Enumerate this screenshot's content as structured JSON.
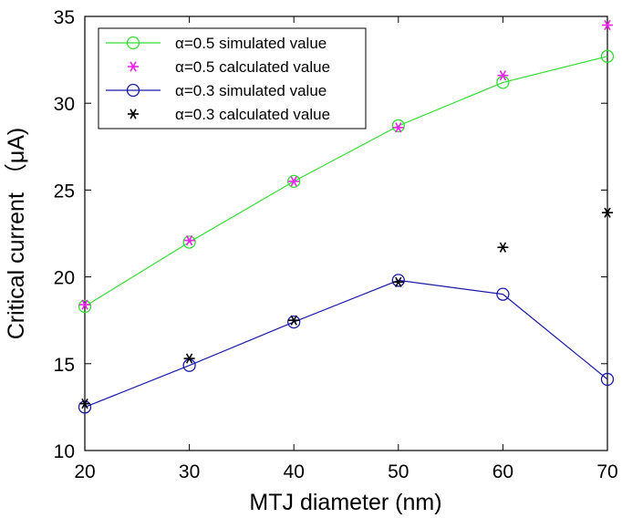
{
  "chart_data": {
    "type": "line",
    "title": "",
    "xlabel": "MTJ diameter (nm)",
    "ylabel": "Critical current （μA)",
    "xlim": [
      20,
      70
    ],
    "ylim": [
      10,
      35
    ],
    "xticks": [
      20,
      30,
      40,
      50,
      60,
      70
    ],
    "yticks": [
      10,
      15,
      20,
      25,
      30,
      35
    ],
    "grid": false,
    "legend_position": "top-left",
    "x": [
      20,
      30,
      40,
      50,
      60,
      70
    ],
    "series": [
      {
        "name": "α=0.5 simulated value",
        "marker": "circle",
        "line": true,
        "color": "#33dd33",
        "values": [
          18.3,
          22.0,
          25.5,
          28.7,
          31.2,
          32.7
        ]
      },
      {
        "name": "α=0.5 calculated value",
        "marker": "star",
        "line": false,
        "color": "#ee22ee",
        "values": [
          18.4,
          22.1,
          25.5,
          28.6,
          31.6,
          34.5
        ]
      },
      {
        "name": "α=0.3 simulated value",
        "marker": "circle",
        "line": true,
        "color": "#1a1aa8",
        "values": [
          12.5,
          14.9,
          17.4,
          19.8,
          19.0,
          14.1
        ]
      },
      {
        "name": "α=0.3 calculated value",
        "marker": "star",
        "line": false,
        "color": "#000000",
        "values": [
          12.7,
          15.3,
          17.5,
          19.7,
          21.7,
          23.7
        ]
      }
    ]
  }
}
